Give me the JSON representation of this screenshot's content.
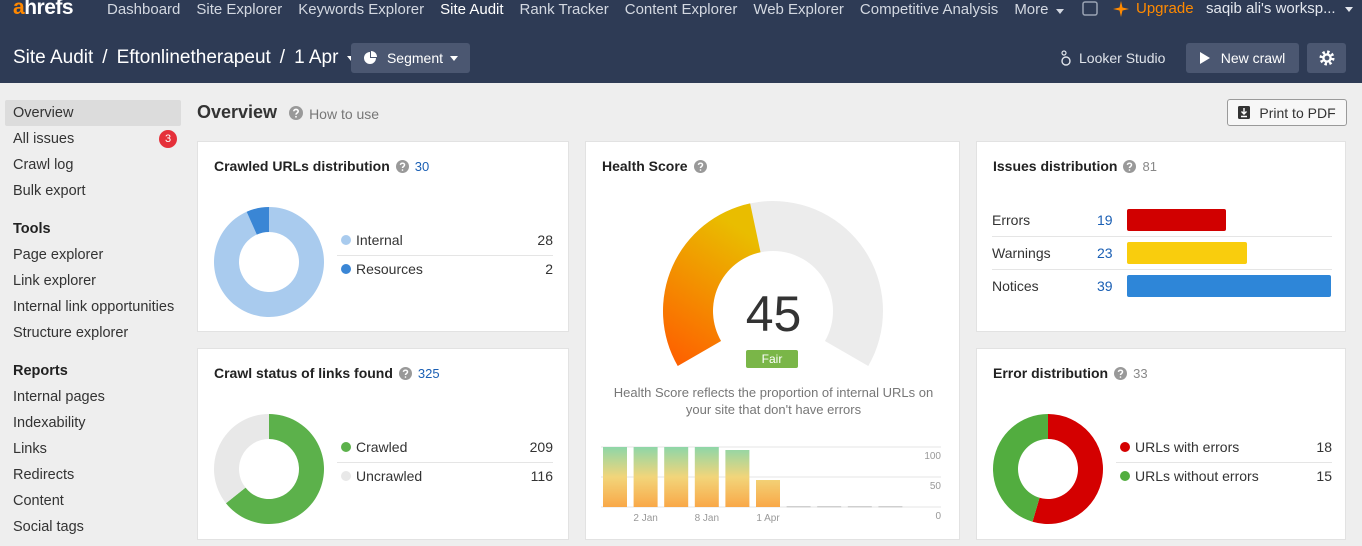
{
  "nav": {
    "logo": "ahrefs",
    "items": [
      "Dashboard",
      "Site Explorer",
      "Keywords Explorer",
      "Site Audit",
      "Rank Tracker",
      "Content Explorer",
      "Web Explorer",
      "Competitive Analysis",
      "More"
    ],
    "active": "Site Audit",
    "upgrade": "Upgrade",
    "workspace": "saqib ali's worksp..."
  },
  "header": {
    "breadcrumb": [
      "Site Audit",
      "Eftonlinetherapeut",
      "1 Apr"
    ],
    "separator": "/",
    "segment": "Segment",
    "looker": "Looker Studio",
    "new_crawl": "New crawl"
  },
  "sidebar": {
    "items": [
      "Overview",
      "All issues",
      "Crawl log",
      "Bulk export"
    ],
    "active": "Overview",
    "badge": 3,
    "sections": [
      {
        "title": "Tools",
        "items": [
          "Page explorer",
          "Link explorer",
          "Internal link opportunities",
          "Structure explorer"
        ]
      },
      {
        "title": "Reports",
        "items": [
          "Internal pages",
          "Indexability",
          "Links",
          "Redirects",
          "Content",
          "Social tags"
        ]
      }
    ]
  },
  "page": {
    "title": "Overview",
    "how_to_use": "How to use",
    "print": "Print to PDF"
  },
  "crawled_urls": {
    "title": "Crawled URLs distribution",
    "total": 30,
    "slices": [
      {
        "name": "Internal",
        "value": 28,
        "color": "#a9cbee"
      },
      {
        "name": "Resources",
        "value": 2,
        "color": "#3a86d5"
      }
    ]
  },
  "crawl_status": {
    "title": "Crawl status of links found",
    "total": 325,
    "slices": [
      {
        "name": "Crawled",
        "value": 209,
        "color": "#5cb14b"
      },
      {
        "name": "Uncrawled",
        "value": 116,
        "color": "#e8e8e8"
      }
    ]
  },
  "health": {
    "title": "Health Score",
    "score": 45,
    "gauge_lim": [
      0,
      100
    ],
    "rating": "Fair",
    "description": "Health Score reflects the proportion of internal URLs on your site that don't have errors",
    "history": {
      "type": "bar",
      "categories": [
        null,
        "2 Jan",
        null,
        "8 Jan",
        null,
        "1 Apr",
        null,
        null,
        null,
        null
      ],
      "values": [
        100,
        100,
        100,
        100,
        95,
        45,
        0,
        0,
        0,
        0
      ],
      "ylim": [
        0,
        100
      ],
      "yticks": [
        0,
        50,
        100
      ],
      "grid": true
    }
  },
  "issues": {
    "title": "Issues distribution",
    "total": 81,
    "rows": [
      {
        "name": "Errors",
        "value": 19,
        "color": "#d10000"
      },
      {
        "name": "Warnings",
        "value": 23,
        "color": "#f9cd0d"
      },
      {
        "name": "Notices",
        "value": 39,
        "color": "#2e86d8"
      }
    ]
  },
  "errors": {
    "title": "Error distribution",
    "total": 33,
    "slices": [
      {
        "name": "URLs with errors",
        "value": 18,
        "color": "#d40000"
      },
      {
        "name": "URLs without errors",
        "value": 15,
        "color": "#52ad3f"
      }
    ]
  }
}
